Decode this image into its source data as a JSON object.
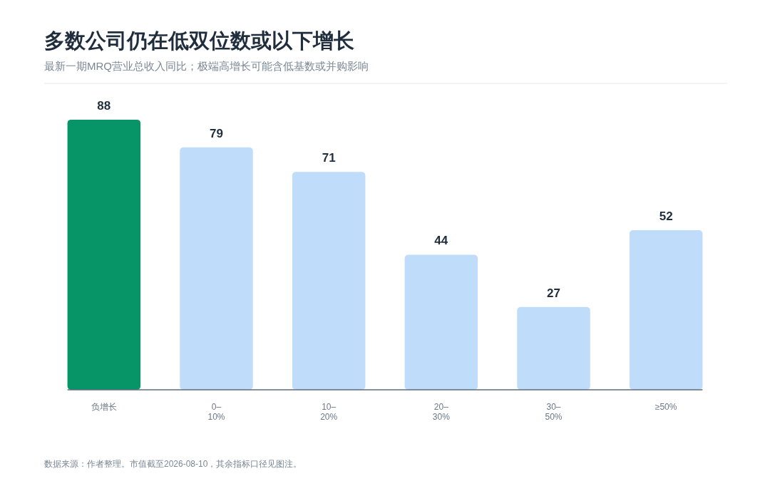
{
  "chart_data": {
    "type": "bar",
    "title": "多数公司仍在低双位数或以下增长",
    "subtitle": "最新一期MRQ营业总收入同比；极端高增长可能含低基数或并购影响",
    "categories": [
      "负增长",
      "0–10%",
      "10–20%",
      "20–30%",
      "30–50%",
      "≥50%"
    ],
    "values": [
      88,
      79,
      71,
      44,
      27,
      52
    ],
    "colors": [
      "#079467",
      "#c0dcfb",
      "#c0dcfb",
      "#c0dcfb",
      "#c0dcfb",
      "#c0dcfb"
    ],
    "data_labels": true,
    "annotations": [
      "数据来源：作者整理。市值截至2026-08-10，其余指标口径见图注。"
    ]
  }
}
